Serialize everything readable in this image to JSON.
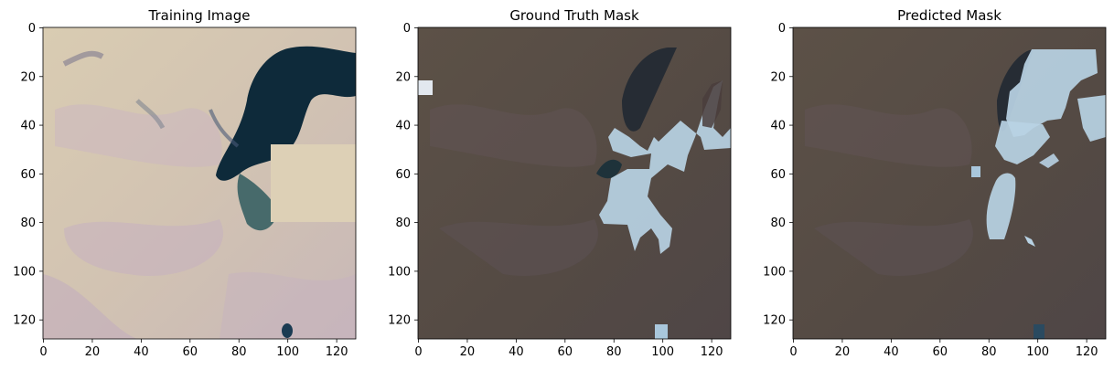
{
  "chart_data": [
    {
      "type": "image",
      "title": "Training Image",
      "xlabel": "",
      "ylabel": "",
      "xlim": [
        0,
        128
      ],
      "ylim": [
        128,
        0
      ],
      "x_ticks": [
        0,
        20,
        40,
        60,
        80,
        100,
        120
      ],
      "y_ticks": [
        0,
        20,
        40,
        60,
        80,
        100,
        120
      ],
      "content": "satellite RGB image (pale beige terrain, dark glacial water at upper right, bright block at right)"
    },
    {
      "type": "image",
      "title": "Ground Truth Mask",
      "xlabel": "",
      "ylabel": "",
      "xlim": [
        0,
        128
      ],
      "ylim": [
        128,
        0
      ],
      "x_ticks": [
        0,
        20,
        40,
        60,
        80,
        100,
        120
      ],
      "y_ticks": [
        0,
        20,
        40,
        60,
        80,
        100,
        120
      ],
      "content": "darkened image overlaid with light-blue segmentation mask"
    },
    {
      "type": "image",
      "title": "Predicted Mask",
      "xlabel": "",
      "ylabel": "",
      "xlim": [
        0,
        128
      ],
      "ylim": [
        128,
        0
      ],
      "x_ticks": [
        0,
        20,
        40,
        60,
        80,
        100,
        120
      ],
      "y_ticks": [
        0,
        20,
        40,
        60,
        80,
        100,
        120
      ],
      "content": "darkened image overlaid with predicted light-blue segmentation mask"
    }
  ],
  "colors": {
    "terrain_light": "#d8ccb4",
    "terrain_dark": "#5a5048",
    "water_dark": "#0e2a3a",
    "mask": "#b8d4e6",
    "axis": "#000000"
  }
}
